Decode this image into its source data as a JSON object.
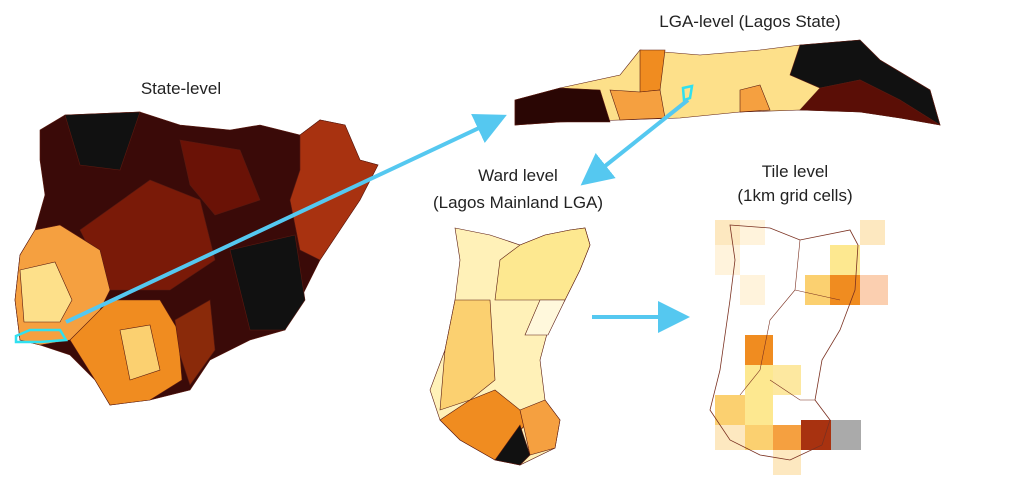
{
  "panels": [
    {
      "title": "State-level"
    },
    {
      "title": "LGA-level (Lagos State)"
    },
    {
      "title": "Ward level",
      "subtitle": "(Lagos Mainland LGA)"
    },
    {
      "title": "Tile level",
      "subtitle": "(1km grid cells)"
    }
  ]
}
